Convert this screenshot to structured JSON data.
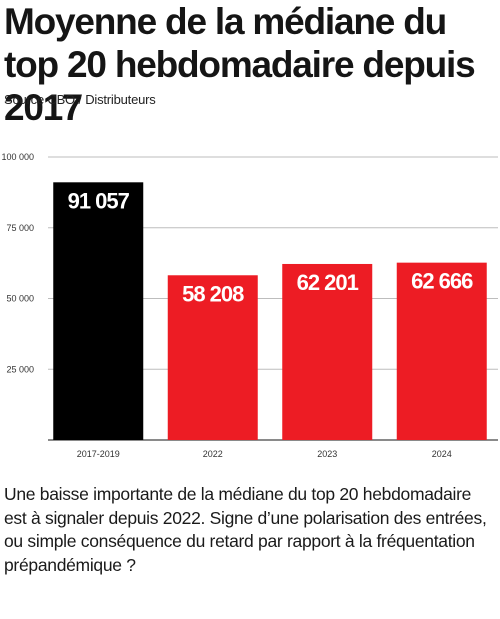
{
  "title": "Moyenne de la médiane du top 20 hebdomadaire depuis 2017",
  "source": "Source CBO / Distributeurs",
  "caption": "Une baisse importante de la médiane du top 20 hebdomadaire est à signaler depuis 2022. Signe d’une polarisation des entrées, ou simple conséquence du retard par rapport à la fréquentation prépandémique ?",
  "chart_data": {
    "type": "bar",
    "categories": [
      "2017-2019",
      "2022",
      "2023",
      "2024"
    ],
    "values": [
      91057,
      58208,
      62201,
      62666
    ],
    "value_labels": [
      "91 057",
      "58 208",
      "62 201",
      "62 666"
    ],
    "yticks": [
      25000,
      50000,
      75000,
      100000
    ],
    "ytick_labels": [
      "25 000",
      "50 000",
      "75 000",
      "100 000"
    ],
    "ylim": [
      0,
      100000
    ],
    "grid": true,
    "colors": [
      "#000000",
      "#ed1c24",
      "#ed1c24",
      "#ed1c24"
    ],
    "label_color": "#ffffff",
    "grid_color": "#bdbdbd"
  }
}
